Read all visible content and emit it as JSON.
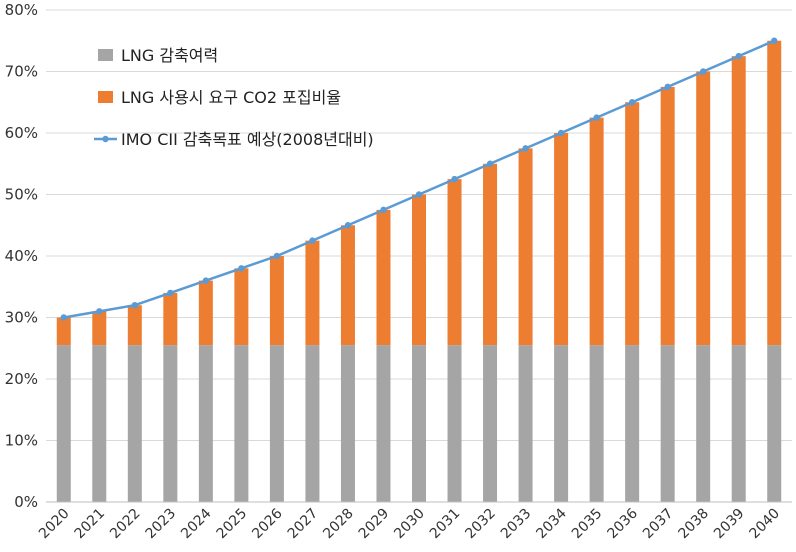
{
  "chart_data": {
    "type": "bar",
    "stacked": true,
    "categories": [
      "2020",
      "2021",
      "2022",
      "2023",
      "2024",
      "2025",
      "2026",
      "2027",
      "2028",
      "2029",
      "2030",
      "2031",
      "2032",
      "2033",
      "2034",
      "2035",
      "2036",
      "2037",
      "2038",
      "2039",
      "2040"
    ],
    "series": [
      {
        "name": "LNG 감축여력",
        "kind": "bar",
        "color": "#a5a5a5",
        "values": [
          25.5,
          25.5,
          25.5,
          25.5,
          25.5,
          25.5,
          25.5,
          25.5,
          25.5,
          25.5,
          25.5,
          25.5,
          25.5,
          25.5,
          25.5,
          25.5,
          25.5,
          25.5,
          25.5,
          25.5,
          25.5
        ]
      },
      {
        "name": "LNG 사용시 요구 CO2 포집비율",
        "kind": "bar",
        "color": "#ed7d31",
        "values": [
          4.5,
          5.5,
          6.5,
          8.5,
          10.5,
          12.5,
          14.5,
          17,
          19.5,
          22,
          24.5,
          27,
          29.5,
          32,
          34.5,
          37,
          39.5,
          42,
          44.5,
          47,
          49.5
        ]
      },
      {
        "name": "IMO CII 감축목표 예상(2008년대비)",
        "kind": "line",
        "color": "#5b9bd5",
        "values": [
          30,
          31,
          32,
          34,
          36,
          38,
          40,
          42.5,
          45,
          47.5,
          50,
          52.5,
          55,
          57.5,
          60,
          62.5,
          65,
          67.5,
          70,
          72.5,
          75
        ]
      }
    ],
    "y_ticks": [
      "0%",
      "10%",
      "20%",
      "30%",
      "40%",
      "50%",
      "60%",
      "70%",
      "80%"
    ],
    "ylim": [
      0,
      80
    ],
    "grid": true,
    "legend_position": "top-left"
  }
}
